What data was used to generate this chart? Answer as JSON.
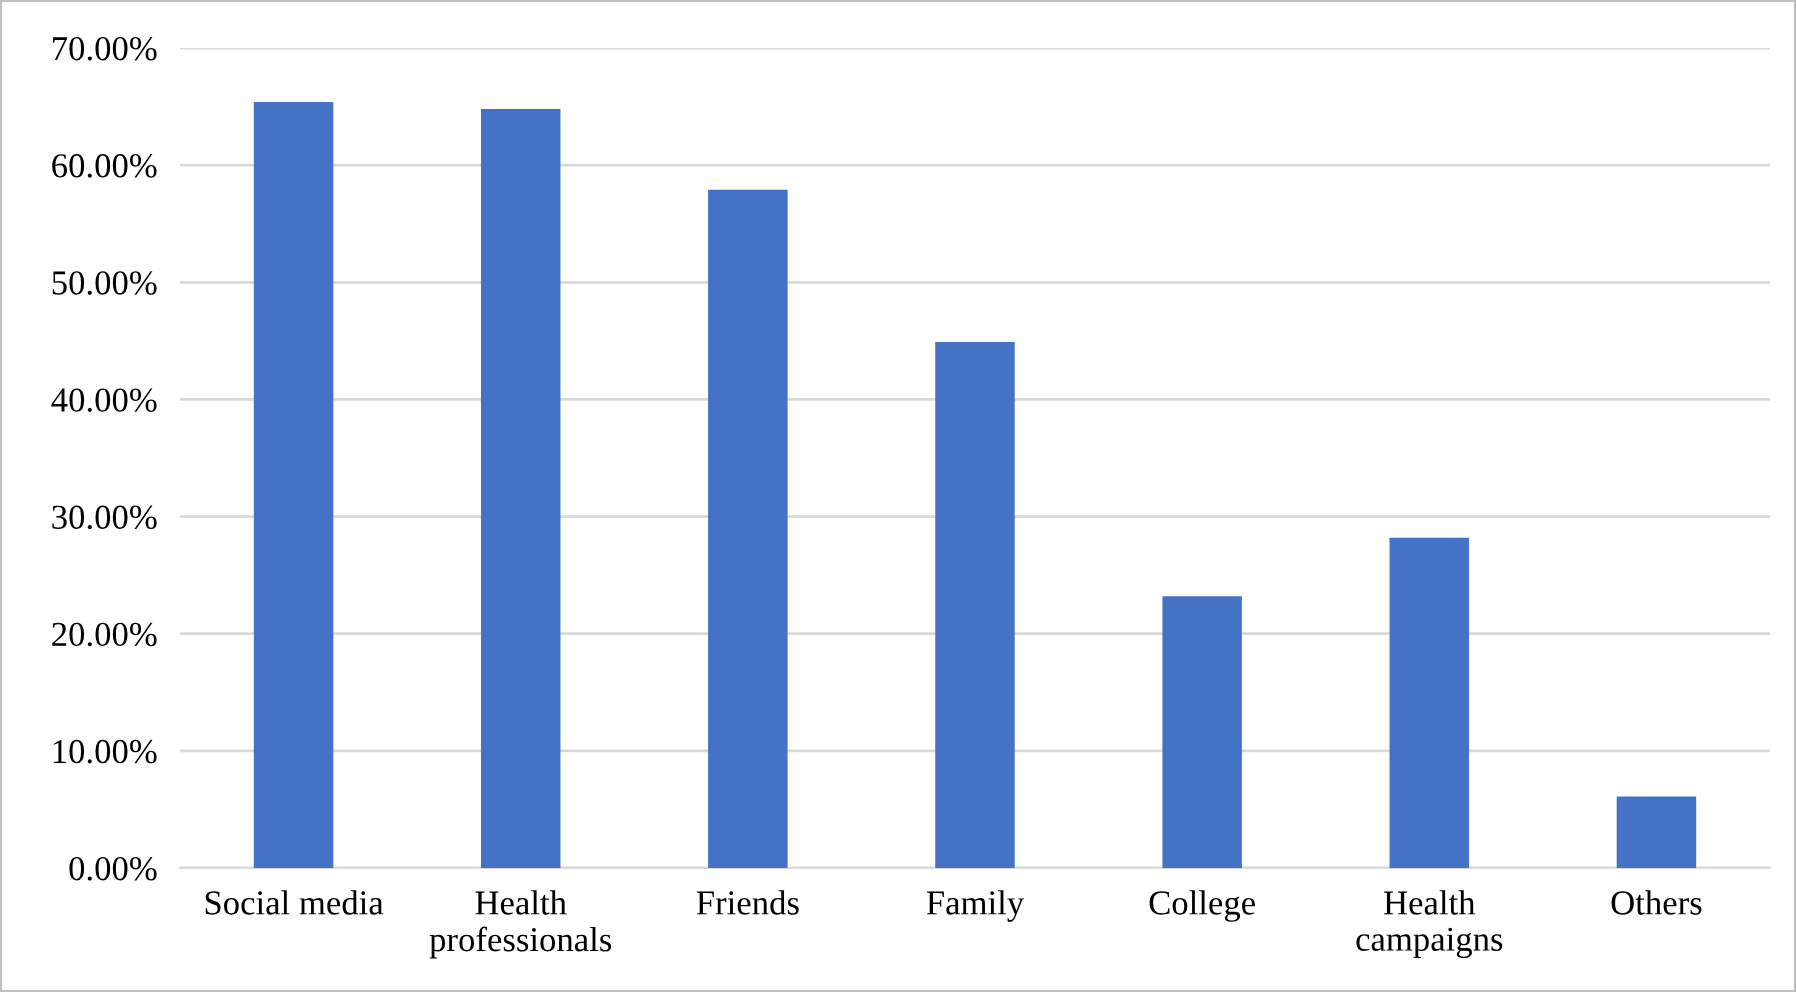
{
  "chart_data": {
    "type": "bar",
    "categories": [
      "Social media",
      "Health\nprofessionals",
      "Friends",
      "Family",
      "College",
      "Health\ncampaigns",
      "Others"
    ],
    "values": [
      65.4,
      64.8,
      57.9,
      44.9,
      23.2,
      28.2,
      6.1
    ],
    "color": "#4472c4",
    "ylim": [
      0,
      70
    ],
    "yticks": [
      {
        "value": 0,
        "label": "0.00%"
      },
      {
        "value": 10,
        "label": "10.00%"
      },
      {
        "value": 20,
        "label": "20.00%"
      },
      {
        "value": 30,
        "label": "30.00%"
      },
      {
        "value": 40,
        "label": "40.00%"
      },
      {
        "value": 50,
        "label": "50.00%"
      },
      {
        "value": 60,
        "label": "60.00%"
      },
      {
        "value": 70,
        "label": "70.00%"
      }
    ],
    "grid": "y"
  }
}
